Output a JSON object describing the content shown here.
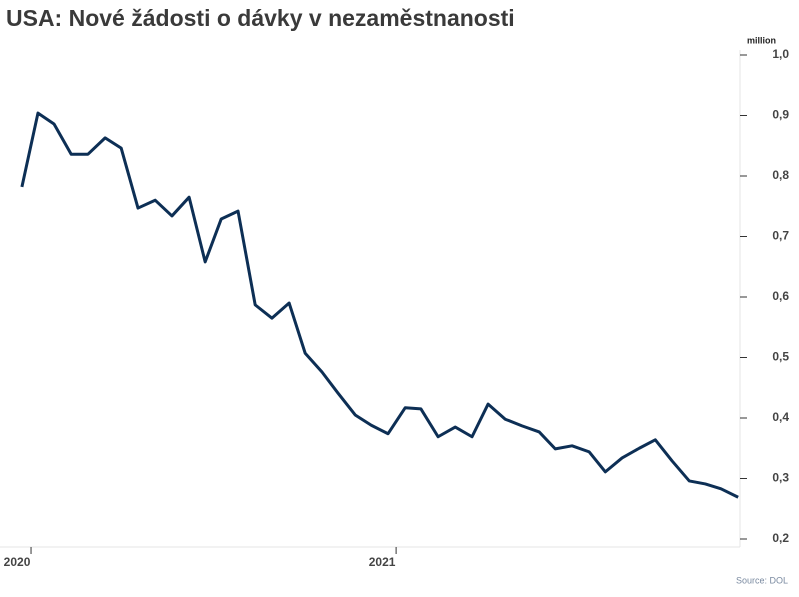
{
  "chart_data": {
    "type": "line",
    "title": "USA: Nové žádosti o dávky v nezaměstnanosti",
    "y_unit": "million",
    "source": "Source: DOL",
    "xlim": [
      2019.915,
      2021.942
    ],
    "xticks": [
      2020,
      2021
    ],
    "ylim": [
      0.2,
      1.0
    ],
    "yticks": [
      {
        "value": 0.2,
        "label": "0,2"
      },
      {
        "value": 0.3,
        "label": "0,3"
      },
      {
        "value": 0.4,
        "label": "0,4"
      },
      {
        "value": 0.5,
        "label": "0,5"
      },
      {
        "value": 0.6,
        "label": "0,6"
      },
      {
        "value": 0.7,
        "label": "0,7"
      },
      {
        "value": 0.8,
        "label": "0,8"
      },
      {
        "value": 0.9,
        "label": "0,9"
      },
      {
        "value": 1.0,
        "label": "1,0"
      }
    ],
    "x": [
      2019.975,
      2020.019,
      2020.063,
      2020.11,
      2020.156,
      2020.203,
      2020.247,
      2020.293,
      2020.34,
      2020.386,
      2020.433,
      2020.477,
      2020.521,
      2020.567,
      2020.614,
      2020.66,
      2020.707,
      2020.751,
      2020.797,
      2020.841,
      2020.888,
      2020.932,
      2020.978,
      2021.025,
      2021.068,
      2021.115,
      2021.162,
      2021.208,
      2021.252,
      2021.299,
      2021.345,
      2021.392,
      2021.436,
      2021.482,
      2021.529,
      2021.573,
      2021.619,
      2021.666,
      2021.71,
      2021.756,
      2021.803,
      2021.847,
      2021.89,
      2021.937
    ],
    "series": [
      {
        "color": "#0d2f55",
        "values": [
          0.782,
          0.904,
          0.886,
          0.836,
          0.836,
          0.863,
          0.846,
          0.747,
          0.76,
          0.734,
          0.765,
          0.658,
          0.729,
          0.742,
          0.587,
          0.565,
          0.59,
          0.507,
          0.476,
          0.441,
          0.405,
          0.388,
          0.374,
          0.417,
          0.415,
          0.369,
          0.385,
          0.369,
          0.423,
          0.398,
          0.387,
          0.377,
          0.349,
          0.354,
          0.344,
          0.311,
          0.334,
          0.35,
          0.364,
          0.329,
          0.296,
          0.291,
          0.283,
          0.269
        ]
      }
    ]
  }
}
